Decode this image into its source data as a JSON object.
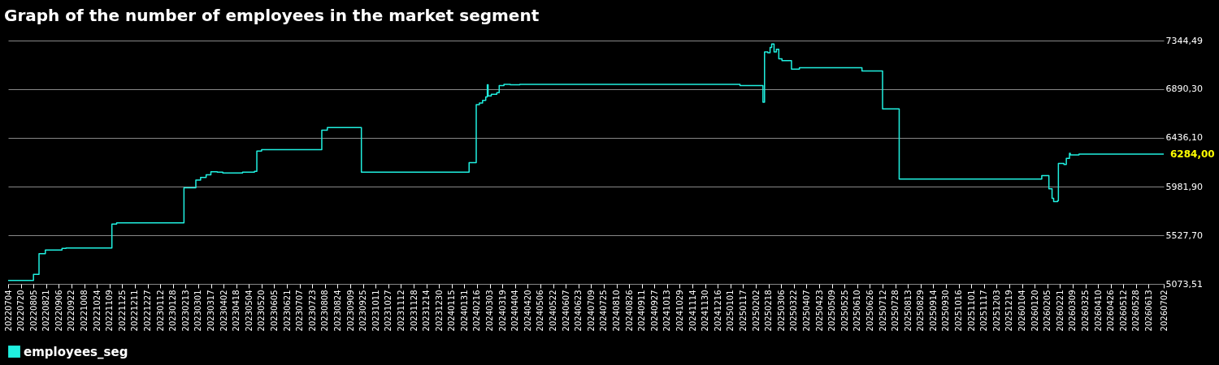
{
  "chart_data": {
    "type": "step",
    "title": "Graph of the number of employees in the market segment",
    "x": [
      "2022-07-04",
      "2022-08-05",
      "2022-08-12",
      "2022-08-20",
      "2022-09-10",
      "2022-09-15",
      "2022-11-12",
      "2022-11-18",
      "2023-02-11",
      "2023-02-26",
      "2023-03-04",
      "2023-03-11",
      "2023-03-17",
      "2023-03-25",
      "2023-04-01",
      "2023-04-26",
      "2023-05-11",
      "2023-05-14",
      "2023-05-20",
      "2023-08-04",
      "2023-08-11",
      "2023-09-23",
      "2024-02-06",
      "2024-02-15",
      "2024-02-19",
      "2024-02-23",
      "2024-02-27",
      "2024-02-29",
      "2024-03-01",
      "2024-03-05",
      "2024-03-12",
      "2024-03-15",
      "2024-03-21",
      "2024-03-29",
      "2024-04-10",
      "2025-01-13",
      "2025-02-11",
      "2025-02-13",
      "2025-02-17",
      "2025-02-20",
      "2025-02-22",
      "2025-02-25",
      "2025-02-28",
      "2025-03-03",
      "2025-03-07",
      "2025-03-19",
      "2025-03-29",
      "2025-06-16",
      "2025-07-12",
      "2025-08-02",
      "2026-01-29",
      "2026-02-07",
      "2026-02-11",
      "2026-02-13",
      "2026-02-18",
      "2026-02-19",
      "2026-02-26",
      "2026-03-01",
      "2026-03-05",
      "2026-03-06",
      "2026-03-17",
      "2026-07-02"
    ],
    "series": [
      {
        "name": "employees_seg",
        "color": "#20f0e0",
        "values": [
          5106,
          5162,
          5356,
          5389,
          5405,
          5409,
          5631,
          5643,
          5970,
          6043,
          6067,
          6092,
          6120,
          6116,
          6108,
          6116,
          6124,
          6314,
          6326,
          6508,
          6532,
          6116,
          6205,
          6746,
          6762,
          6787,
          6819,
          6932,
          6827,
          6843,
          6859,
          6924,
          6936,
          6932,
          6936,
          6924,
          6770,
          7239,
          7231,
          7280,
          7312,
          7239,
          7263,
          7174,
          7158,
          7077,
          7090,
          7061,
          6706,
          6051,
          6084,
          5962,
          5873,
          5841,
          5849,
          6197,
          6189,
          6245,
          6293,
          6277,
          6284,
          6284
        ]
      }
    ],
    "xlim": [
      "2022-07-04",
      "2026-07-02"
    ],
    "xticks": [
      {
        "value": "2022-07-04",
        "label": "20220704"
      },
      {
        "value": "2022-07-20",
        "label": "20220720"
      },
      {
        "value": "2022-08-05",
        "label": "20220805"
      },
      {
        "value": "2022-08-21",
        "label": "20220821"
      },
      {
        "value": "2022-09-06",
        "label": "20220906"
      },
      {
        "value": "2022-09-22",
        "label": "20220922"
      },
      {
        "value": "2022-10-08",
        "label": "20221008"
      },
      {
        "value": "2022-10-24",
        "label": "20221024"
      },
      {
        "value": "2022-11-09",
        "label": "20221109"
      },
      {
        "value": "2022-11-25",
        "label": "20221125"
      },
      {
        "value": "2022-12-11",
        "label": "20221211"
      },
      {
        "value": "2022-12-27",
        "label": "20221227"
      },
      {
        "value": "2023-01-12",
        "label": "20230112"
      },
      {
        "value": "2023-01-28",
        "label": "20230128"
      },
      {
        "value": "2023-02-13",
        "label": "20230213"
      },
      {
        "value": "2023-03-01",
        "label": "20230301"
      },
      {
        "value": "2023-03-17",
        "label": "20230317"
      },
      {
        "value": "2023-04-02",
        "label": "20230402"
      },
      {
        "value": "2023-04-18",
        "label": "20230418"
      },
      {
        "value": "2023-05-04",
        "label": "20230504"
      },
      {
        "value": "2023-05-20",
        "label": "20230520"
      },
      {
        "value": "2023-06-05",
        "label": "20230605"
      },
      {
        "value": "2023-06-21",
        "label": "20230621"
      },
      {
        "value": "2023-07-07",
        "label": "20230707"
      },
      {
        "value": "2023-07-23",
        "label": "20230723"
      },
      {
        "value": "2023-08-08",
        "label": "20230808"
      },
      {
        "value": "2023-08-24",
        "label": "20230824"
      },
      {
        "value": "2023-09-09",
        "label": "20230909"
      },
      {
        "value": "2023-09-25",
        "label": "20230925"
      },
      {
        "value": "2023-10-11",
        "label": "20231011"
      },
      {
        "value": "2023-10-27",
        "label": "20231027"
      },
      {
        "value": "2023-11-12",
        "label": "20231112"
      },
      {
        "value": "2023-11-28",
        "label": "20231128"
      },
      {
        "value": "2023-12-14",
        "label": "20231214"
      },
      {
        "value": "2023-12-30",
        "label": "20231230"
      },
      {
        "value": "2024-01-15",
        "label": "20240115"
      },
      {
        "value": "2024-01-31",
        "label": "20240131"
      },
      {
        "value": "2024-02-16",
        "label": "20240216"
      },
      {
        "value": "2024-03-03",
        "label": "20240303"
      },
      {
        "value": "2024-03-19",
        "label": "20240319"
      },
      {
        "value": "2024-04-04",
        "label": "20240404"
      },
      {
        "value": "2024-04-20",
        "label": "20240420"
      },
      {
        "value": "2024-05-06",
        "label": "20240506"
      },
      {
        "value": "2024-05-22",
        "label": "20240522"
      },
      {
        "value": "2024-06-07",
        "label": "20240607"
      },
      {
        "value": "2024-06-23",
        "label": "20240623"
      },
      {
        "value": "2024-07-09",
        "label": "20240709"
      },
      {
        "value": "2024-07-25",
        "label": "20240725"
      },
      {
        "value": "2024-08-10",
        "label": "20240810"
      },
      {
        "value": "2024-08-26",
        "label": "20240826"
      },
      {
        "value": "2024-09-11",
        "label": "20240911"
      },
      {
        "value": "2024-09-27",
        "label": "20240927"
      },
      {
        "value": "2024-10-13",
        "label": "20241013"
      },
      {
        "value": "2024-10-29",
        "label": "20241029"
      },
      {
        "value": "2024-11-14",
        "label": "20241114"
      },
      {
        "value": "2024-11-30",
        "label": "20241130"
      },
      {
        "value": "2024-12-16",
        "label": "20241216"
      },
      {
        "value": "2025-01-01",
        "label": "20250101"
      },
      {
        "value": "2025-01-17",
        "label": "20250117"
      },
      {
        "value": "2025-02-02",
        "label": "20250202"
      },
      {
        "value": "2025-02-18",
        "label": "20250218"
      },
      {
        "value": "2025-03-06",
        "label": "20250306"
      },
      {
        "value": "2025-03-22",
        "label": "20250322"
      },
      {
        "value": "2025-04-07",
        "label": "20250407"
      },
      {
        "value": "2025-04-23",
        "label": "20250423"
      },
      {
        "value": "2025-05-09",
        "label": "20250509"
      },
      {
        "value": "2025-05-25",
        "label": "20250525"
      },
      {
        "value": "2025-06-10",
        "label": "20250610"
      },
      {
        "value": "2025-06-26",
        "label": "20250626"
      },
      {
        "value": "2025-07-12",
        "label": "20250712"
      },
      {
        "value": "2025-07-28",
        "label": "20250728"
      },
      {
        "value": "2025-08-13",
        "label": "20250813"
      },
      {
        "value": "2025-08-29",
        "label": "20250829"
      },
      {
        "value": "2025-09-14",
        "label": "20250914"
      },
      {
        "value": "2025-09-30",
        "label": "20250930"
      },
      {
        "value": "2025-10-16",
        "label": "20251016"
      },
      {
        "value": "2025-11-01",
        "label": "20251101"
      },
      {
        "value": "2025-11-17",
        "label": "20251117"
      },
      {
        "value": "2025-12-03",
        "label": "20251203"
      },
      {
        "value": "2025-12-19",
        "label": "20251219"
      },
      {
        "value": "2026-01-04",
        "label": "20260104"
      },
      {
        "value": "2026-01-20",
        "label": "20260120"
      },
      {
        "value": "2026-02-05",
        "label": "20260205"
      },
      {
        "value": "2026-02-21",
        "label": "20260221"
      },
      {
        "value": "2026-03-09",
        "label": "20260309"
      },
      {
        "value": "2026-03-25",
        "label": "20260325"
      },
      {
        "value": "2026-04-10",
        "label": "20260410"
      },
      {
        "value": "2026-04-26",
        "label": "20260426"
      },
      {
        "value": "2026-05-12",
        "label": "20260512"
      },
      {
        "value": "2026-05-28",
        "label": "20260528"
      },
      {
        "value": "2026-06-13",
        "label": "20260613"
      },
      {
        "value": "2026-07-02",
        "label": "20260702"
      }
    ],
    "ylim": [
      5073.51,
      7344.49
    ],
    "yticks": [
      {
        "value": 5073.51,
        "label": "5073,51"
      },
      {
        "value": 5527.7,
        "label": "5527,70"
      },
      {
        "value": 5981.9,
        "label": "5981,90"
      },
      {
        "value": 6436.1,
        "label": "6436,10"
      },
      {
        "value": 6890.3,
        "label": "6890,30"
      },
      {
        "value": 7344.49,
        "label": "7344,49"
      }
    ],
    "annotations": [
      {
        "text": "6284,00",
        "x": "2026-07-02",
        "y": 6284
      }
    ],
    "grid": "y",
    "legend": "bottom"
  }
}
